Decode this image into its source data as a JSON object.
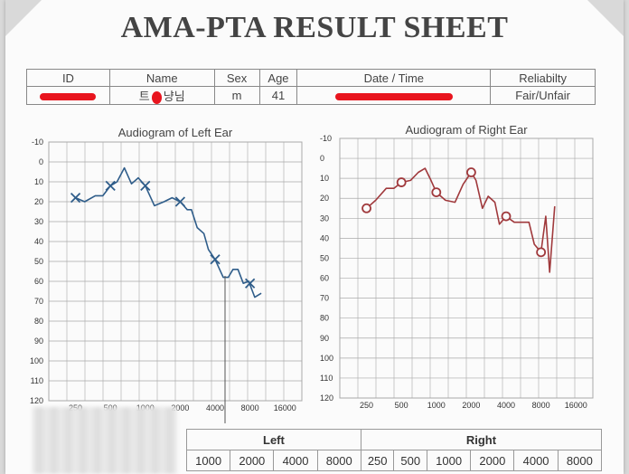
{
  "title": "AMA-PTA RESULT SHEET",
  "info": {
    "headers": {
      "id": "ID",
      "name": "Name",
      "sex": "Sex",
      "age": "Age",
      "datetime": "Date / Time",
      "reliability": "Reliabilty"
    },
    "values": {
      "name_fragment_a": "트",
      "name_fragment_b": "냥님",
      "sex": "m",
      "age": "41",
      "reliability": "Fair/Unfair"
    }
  },
  "colors": {
    "left_ear": "#2f5d8a",
    "right_ear": "#a0393c",
    "grid": "#a9a9a9",
    "redaction": "#e8141e"
  },
  "chart_data": [
    {
      "type": "line",
      "title": "Audiogram of Left Ear",
      "x_ticks": [
        250,
        500,
        1000,
        2000,
        4000,
        8000,
        16000
      ],
      "y_ticks": [
        -10,
        0,
        10,
        20,
        30,
        40,
        50,
        60,
        70,
        80,
        90,
        100,
        110,
        120
      ],
      "ylim": [
        -10,
        120
      ],
      "y_inverted": true,
      "grid": true,
      "series": [
        {
          "marker": "x",
          "points": [
            [
              250,
              18
            ],
            [
              300,
              20
            ],
            [
              370,
              17
            ],
            [
              430,
              17
            ],
            [
              500,
              12
            ],
            [
              570,
              10
            ],
            [
              660,
              3
            ],
            [
              760,
              11
            ],
            [
              870,
              8
            ],
            [
              1000,
              12
            ],
            [
              1200,
              22
            ],
            [
              1450,
              20
            ],
            [
              1700,
              18
            ],
            [
              2000,
              20
            ],
            [
              2300,
              24
            ],
            [
              2500,
              24
            ],
            [
              2800,
              33
            ],
            [
              3200,
              36
            ],
            [
              3500,
              44
            ],
            [
              4000,
              49
            ],
            [
              4700,
              58
            ],
            [
              5200,
              58
            ],
            [
              5700,
              54
            ],
            [
              6300,
              54
            ],
            [
              7000,
              61
            ],
            [
              7800,
              60
            ],
            [
              8800,
              68
            ],
            [
              10000,
              66
            ]
          ],
          "markers": [
            [
              250,
              18
            ],
            [
              500,
              12
            ],
            [
              1000,
              12
            ],
            [
              2000,
              20
            ],
            [
              4000,
              49
            ],
            [
              8000,
              61
            ]
          ]
        }
      ]
    },
    {
      "type": "line",
      "title": "Audiogram of Right Ear",
      "x_ticks": [
        250,
        500,
        1000,
        2000,
        4000,
        8000,
        16000
      ],
      "y_ticks": [
        -10,
        0,
        10,
        20,
        30,
        40,
        50,
        60,
        70,
        80,
        90,
        100,
        110,
        120
      ],
      "ylim": [
        -10,
        120
      ],
      "y_inverted": true,
      "grid": true,
      "series": [
        {
          "marker": "o",
          "points": [
            [
              250,
              25
            ],
            [
              300,
              21
            ],
            [
              370,
              15
            ],
            [
              430,
              15
            ],
            [
              500,
              12
            ],
            [
              600,
              11
            ],
            [
              700,
              7
            ],
            [
              800,
              5
            ],
            [
              900,
              11
            ],
            [
              1000,
              17
            ],
            [
              1200,
              21
            ],
            [
              1450,
              22
            ],
            [
              1700,
              13
            ],
            [
              2000,
              7
            ],
            [
              2200,
              11
            ],
            [
              2500,
              25
            ],
            [
              2800,
              19
            ],
            [
              3200,
              22
            ],
            [
              3500,
              33
            ],
            [
              4000,
              29
            ],
            [
              4700,
              32
            ],
            [
              5500,
              32
            ],
            [
              6300,
              32
            ],
            [
              7000,
              43
            ],
            [
              8000,
              47
            ],
            [
              8800,
              29
            ],
            [
              9500,
              57
            ],
            [
              10500,
              24
            ]
          ],
          "markers": [
            [
              250,
              25
            ],
            [
              500,
              12
            ],
            [
              1000,
              17
            ],
            [
              2000,
              7
            ],
            [
              4000,
              29
            ],
            [
              8000,
              47
            ]
          ]
        }
      ]
    }
  ],
  "frequency_table": {
    "left_label": "Left",
    "right_label": "Right",
    "left_freqs": [
      "1000",
      "2000",
      "4000",
      "8000"
    ],
    "right_freqs": [
      "250",
      "500",
      "1000",
      "2000",
      "4000",
      "8000"
    ]
  }
}
